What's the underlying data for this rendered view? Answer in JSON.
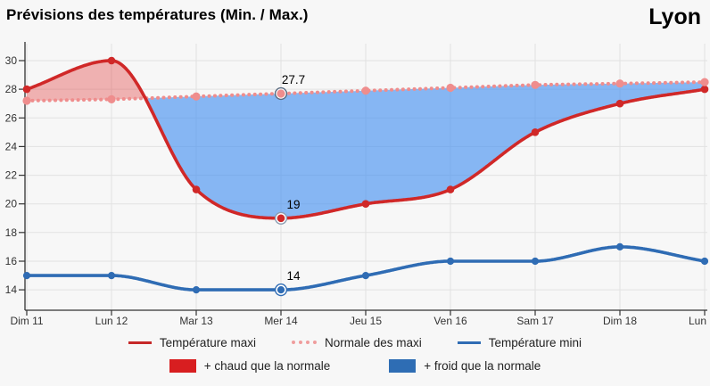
{
  "header": {
    "title": "Prévisions des températures (Min. / Max.)",
    "city": "Lyon"
  },
  "chart_data": {
    "type": "line",
    "title": "Prévisions des températures (Min. / Max.)",
    "location": "Lyon",
    "categories": [
      "Dim 11",
      "Lun 12",
      "Mar 13",
      "Mer 14",
      "Jeu 15",
      "Ven 16",
      "Sam 17",
      "Dim 18",
      "Lun"
    ],
    "yticks": [
      14,
      16,
      18,
      20,
      22,
      24,
      26,
      28,
      30
    ],
    "ylim": [
      12.5,
      31.2
    ],
    "grid": true,
    "legend_position": "bottom",
    "series": [
      {
        "name": "Température maxi",
        "color": "#d02828",
        "dash": "solid",
        "marker_r": 4.3,
        "ring": "#8a9bb0",
        "values": [
          28,
          30,
          21,
          19,
          20,
          21,
          25,
          27,
          28
        ]
      },
      {
        "name": "Normale des maxi",
        "color": "#ef8d8d",
        "dash": "dotted",
        "marker_r": 4.6,
        "ring": "#5a6b80",
        "values": [
          27.2,
          27.3,
          27.5,
          27.7,
          27.9,
          28.1,
          28.3,
          28.4,
          28.5
        ]
      },
      {
        "name": "Température mini",
        "color": "#2f6cb4",
        "dash": "solid",
        "marker_r": 4.1,
        "ring": "#2f6cb4",
        "values": [
          15,
          15,
          14,
          14,
          15,
          16,
          16,
          17,
          16
        ]
      }
    ],
    "areas": [
      {
        "name": "+ chaud que la normale",
        "between": [
          "Température maxi",
          "Normale des maxi"
        ],
        "when": "maxi_above_normale",
        "color": "rgba(226,62,62,0.38)"
      },
      {
        "name": "+ froid que la normale",
        "between": [
          "Température maxi",
          "Normale des maxi"
        ],
        "when": "maxi_below_normale",
        "color": "rgba(64,142,240,0.62)"
      }
    ],
    "selected_category_index": 3,
    "selected_category": "Mer 14",
    "annotations": [
      {
        "series": 1,
        "index": 3,
        "label": "27.7"
      },
      {
        "series": 0,
        "index": 3,
        "label": "19"
      },
      {
        "series": 2,
        "index": 3,
        "label": "14"
      }
    ]
  },
  "legend": {
    "series": [
      {
        "label": "Température maxi",
        "color": "#c62828",
        "swatch": "line"
      },
      {
        "label": "Normale des maxi",
        "color": "#ef9d9d",
        "swatch": "dotted"
      },
      {
        "label": "Température mini",
        "color": "#2f6cb4",
        "swatch": "line"
      }
    ],
    "areas": [
      {
        "label": "+ chaud que la normale",
        "color": "#d81e20"
      },
      {
        "label": "+ froid que la normale",
        "color": "#2e6db4"
      }
    ]
  },
  "colors": {
    "background": "#f7f7f7",
    "grid": "#e2e2e2",
    "axis": "#333333",
    "tick_label": "#333333",
    "annotation_text": "#000000"
  }
}
